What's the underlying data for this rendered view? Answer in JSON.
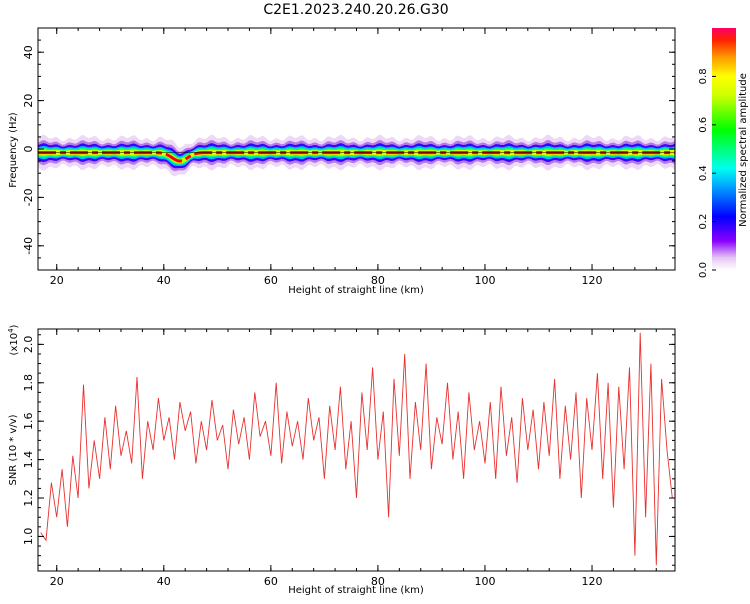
{
  "title": "C2E1.2023.240.20.26.G30",
  "top_panel": {
    "ylabel": "Frequency (Hz)",
    "xlabel": "Height of straight line (km)",
    "colorbar_label": "Normalized spectral amplitude"
  },
  "bottom_panel": {
    "ylabel": "SNR (10 * v/v)",
    "xlabel": "Height of straight line (km)",
    "multiplier": "(x10",
    "multiplier_exp": "4",
    "multiplier_close": ")"
  },
  "colors": {
    "snr_line": "#e8312f",
    "band_center": "#ff0000"
  },
  "chart_data": [
    {
      "type": "heatmap",
      "title": "C2E1.2023.240.20.26.G30",
      "xlabel": "Height of straight line (km)",
      "ylabel": "Frequency (Hz)",
      "xlim": [
        16.5,
        135.5
      ],
      "ylim": [
        -50,
        50
      ],
      "x_ticks": [
        20,
        40,
        60,
        80,
        100,
        120
      ],
      "y_ticks": [
        -40,
        -20,
        0,
        20,
        40
      ],
      "colorbar": {
        "label": "Normalized spectral amplitude",
        "range": [
          0,
          1
        ],
        "ticks": [
          0.0,
          0.2,
          0.4,
          0.6,
          0.8
        ],
        "colormap": "rainbow (white-purple-blue-cyan-green-yellow-orange-red)"
      },
      "band": {
        "center_frequency_hz": -1.5,
        "half_width_hz": 3,
        "dip": {
          "x": 43,
          "frequency_hz": -5
        }
      }
    },
    {
      "type": "line",
      "xlabel": "Height of straight line (km)",
      "ylabel": "SNR (10 * v/v)",
      "y_multiplier": "x10^4",
      "xlim": [
        16.5,
        135.5
      ],
      "ylim": [
        0.82,
        2.08
      ],
      "x_ticks": [
        20,
        40,
        60,
        80,
        100,
        120
      ],
      "y_ticks": [
        1.0,
        1.2,
        1.4,
        1.6,
        1.8,
        2.0
      ],
      "series": [
        {
          "x": [
            17,
            18,
            19,
            20,
            21,
            22,
            23,
            24,
            25,
            26,
            27,
            28,
            29,
            30,
            31,
            32,
            33,
            34,
            35,
            36,
            37,
            38,
            39,
            40,
            41,
            42,
            43,
            44,
            45,
            46,
            47,
            48,
            49,
            50,
            51,
            52,
            53,
            54,
            55,
            56,
            57,
            58,
            59,
            60,
            61,
            62,
            63,
            64,
            65,
            66,
            67,
            68,
            69,
            70,
            71,
            72,
            73,
            74,
            75,
            76,
            77,
            78,
            79,
            80,
            81,
            82,
            83,
            84,
            85,
            86,
            87,
            88,
            89,
            90,
            91,
            92,
            93,
            94,
            95,
            96,
            97,
            98,
            99,
            100,
            101,
            102,
            103,
            104,
            105,
            106,
            107,
            108,
            109,
            110,
            111,
            112,
            113,
            114,
            115,
            116,
            117,
            118,
            119,
            120,
            121,
            122,
            123,
            124,
            125,
            126,
            127,
            128,
            129,
            130,
            131,
            132,
            133,
            134,
            135
          ],
          "y": [
            1.02,
            0.98,
            1.28,
            1.1,
            1.35,
            1.05,
            1.42,
            1.2,
            1.79,
            1.25,
            1.5,
            1.3,
            1.62,
            1.35,
            1.68,
            1.42,
            1.55,
            1.38,
            1.83,
            1.3,
            1.6,
            1.45,
            1.72,
            1.5,
            1.62,
            1.4,
            1.7,
            1.55,
            1.65,
            1.38,
            1.6,
            1.45,
            1.71,
            1.5,
            1.58,
            1.35,
            1.66,
            1.48,
            1.62,
            1.4,
            1.75,
            1.52,
            1.6,
            1.42,
            1.8,
            1.38,
            1.65,
            1.47,
            1.6,
            1.4,
            1.72,
            1.5,
            1.62,
            1.3,
            1.68,
            1.45,
            1.78,
            1.35,
            1.6,
            1.2,
            1.75,
            1.45,
            1.88,
            1.4,
            1.65,
            1.1,
            1.82,
            1.42,
            1.95,
            1.3,
            1.7,
            1.45,
            1.9,
            1.35,
            1.62,
            1.48,
            1.8,
            1.4,
            1.65,
            1.3,
            1.75,
            1.45,
            1.6,
            1.38,
            1.7,
            1.3,
            1.78,
            1.42,
            1.62,
            1.28,
            1.72,
            1.45,
            1.66,
            1.35,
            1.7,
            1.42,
            1.82,
            1.3,
            1.68,
            1.4,
            1.75,
            1.2,
            1.72,
            1.45,
            1.85,
            1.3,
            1.8,
            1.15,
            1.78,
            1.35,
            1.88,
            0.9,
            2.06,
            1.1,
            1.9,
            0.85,
            1.82,
            1.45,
            1.2
          ]
        }
      ]
    }
  ]
}
